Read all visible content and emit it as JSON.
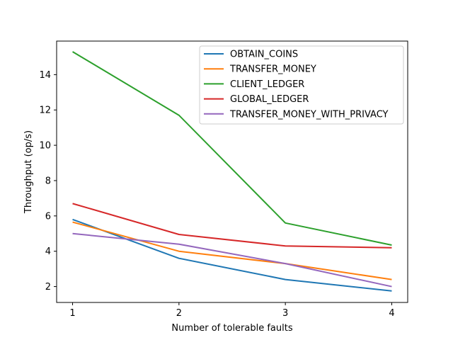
{
  "chart_data": {
    "type": "line",
    "title": "",
    "xlabel": "Number of tolerable faults",
    "ylabel": "Throughput (op/s)",
    "x": [
      1,
      2,
      3,
      4
    ],
    "xticks": [
      1,
      2,
      3,
      4
    ],
    "xlim": [
      0.85,
      4.15
    ],
    "yticks": [
      2,
      4,
      6,
      8,
      10,
      12,
      14
    ],
    "ylim": [
      1.1,
      15.9
    ],
    "grid": false,
    "legend_position": "top-right",
    "series": [
      {
        "name": "OBTAIN_COINS",
        "color": "#1f77b4",
        "values": [
          5.8,
          3.6,
          2.4,
          1.75
        ]
      },
      {
        "name": "TRANSFER_MONEY",
        "color": "#ff7f0e",
        "values": [
          5.65,
          4.0,
          3.3,
          2.4
        ]
      },
      {
        "name": "CLIENT_LEDGER",
        "color": "#2ca02c",
        "values": [
          15.3,
          11.7,
          5.6,
          4.35
        ]
      },
      {
        "name": "GLOBAL_LEDGER",
        "color": "#d62728",
        "values": [
          6.7,
          4.95,
          4.3,
          4.2
        ]
      },
      {
        "name": "TRANSFER_MONEY_WITH_PRIVACY",
        "color": "#9467bd",
        "values": [
          5.0,
          4.4,
          3.3,
          2.0
        ]
      }
    ]
  }
}
